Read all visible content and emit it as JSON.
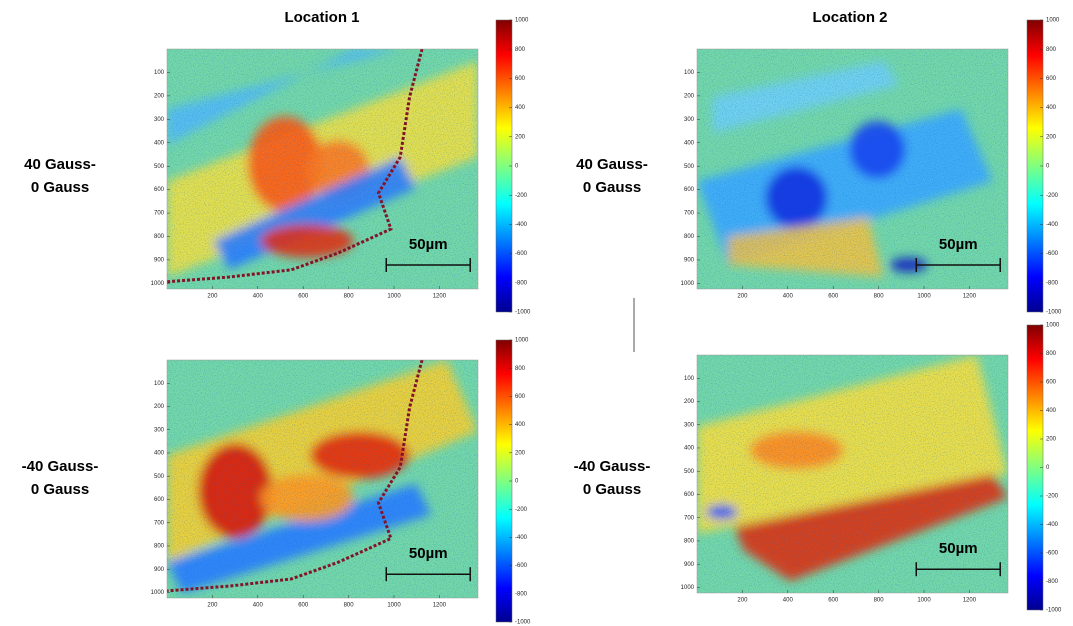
{
  "columns": [
    "Location 1",
    "Location 2"
  ],
  "rows": [
    [
      "40 Gauss-",
      "0 Gauss"
    ],
    [
      "-40 Gauss-",
      "0 Gauss"
    ]
  ],
  "axes": {
    "xlim": [
      0,
      1370
    ],
    "ylim": [
      0,
      1024
    ],
    "xticks": [
      200,
      400,
      600,
      800,
      1000,
      1200
    ],
    "yticks": [
      100,
      200,
      300,
      400,
      500,
      600,
      700,
      800,
      900,
      1000
    ]
  },
  "colorbar": {
    "clim": [
      -1000,
      1000
    ],
    "ticks": [
      1000,
      800,
      600,
      400,
      200,
      0,
      -200,
      -400,
      -600,
      -800,
      -1000
    ]
  },
  "scale_bar": "50µm"
}
